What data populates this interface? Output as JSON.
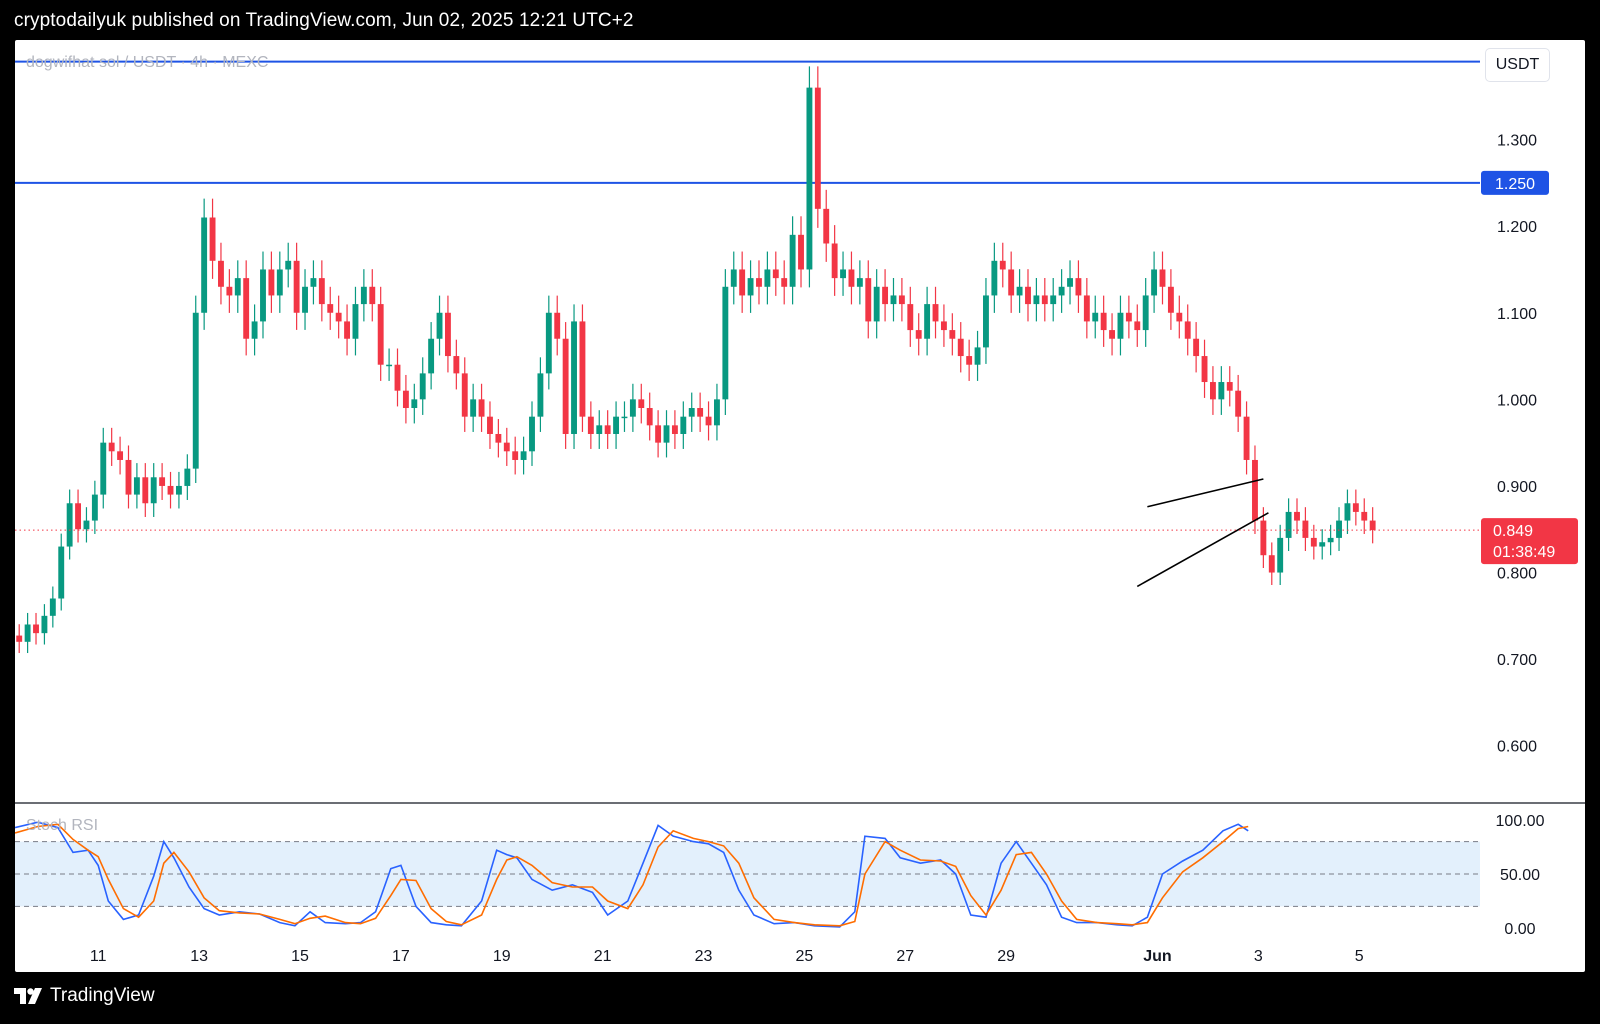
{
  "header": {
    "publisher": "cryptodailyuk published on TradingView.com, Jun 02, 2025 12:21 UTC+2"
  },
  "symbol": {
    "name": "dogwifhat sol / USDT · 4h · MEXC"
  },
  "price_axis": {
    "unit": "USDT"
  },
  "footer": {
    "brand": "TradingView"
  },
  "colors": {
    "up": "#089981",
    "down": "#f23645",
    "level_line": "#1e53e5",
    "k_line": "#2962ff",
    "d_line": "#ff6d00",
    "band": "#e3f0fc"
  },
  "chart_data": [
    {
      "type": "candlestick",
      "title": "dogwifhat sol / USDT · 4h · MEXC",
      "ylabel": "USDT",
      "ylim": [
        0.535,
        1.415
      ],
      "y_ticks": [
        "1.300",
        "1.200",
        "1.100",
        "1.000",
        "0.900",
        "0.800",
        "0.700",
        "0.600"
      ],
      "x_ticks": [
        "11",
        "13",
        "15",
        "17",
        "19",
        "21",
        "23",
        "25",
        "27",
        "29",
        "Jun",
        "3",
        "5"
      ],
      "x_tick_days": [
        11,
        13,
        15,
        17,
        19,
        21,
        23,
        25,
        27,
        29,
        32,
        34,
        36
      ],
      "x_start_day": 9.35,
      "x_end_day": 37.8,
      "candles_per_day": 6,
      "closes": [
        0.72,
        0.74,
        0.73,
        0.75,
        0.77,
        0.83,
        0.88,
        0.85,
        0.86,
        0.89,
        0.95,
        0.94,
        0.93,
        0.89,
        0.91,
        0.88,
        0.91,
        0.9,
        0.89,
        0.9,
        0.92,
        1.1,
        1.21,
        1.16,
        1.13,
        1.12,
        1.14,
        1.07,
        1.09,
        1.15,
        1.12,
        1.15,
        1.16,
        1.1,
        1.13,
        1.14,
        1.11,
        1.1,
        1.09,
        1.07,
        1.11,
        1.13,
        1.11,
        1.04,
        1.04,
        1.01,
        0.99,
        1.0,
        1.03,
        1.07,
        1.1,
        1.05,
        1.03,
        0.98,
        1.0,
        0.98,
        0.96,
        0.95,
        0.94,
        0.93,
        0.94,
        0.98,
        1.03,
        1.1,
        1.07,
        0.96,
        1.09,
        0.98,
        0.96,
        0.97,
        0.96,
        0.98,
        0.98,
        1.0,
        0.99,
        0.97,
        0.95,
        0.97,
        0.96,
        0.98,
        0.99,
        0.98,
        0.97,
        1.0,
        1.13,
        1.15,
        1.12,
        1.14,
        1.13,
        1.15,
        1.14,
        1.13,
        1.19,
        1.15,
        1.36,
        1.22,
        1.18,
        1.14,
        1.15,
        1.13,
        1.14,
        1.09,
        1.13,
        1.11,
        1.12,
        1.11,
        1.08,
        1.07,
        1.11,
        1.09,
        1.08,
        1.07,
        1.05,
        1.04,
        1.06,
        1.12,
        1.16,
        1.15,
        1.12,
        1.13,
        1.11,
        1.12,
        1.11,
        1.12,
        1.13,
        1.14,
        1.12,
        1.09,
        1.1,
        1.08,
        1.07,
        1.1,
        1.09,
        1.08,
        1.12,
        1.15,
        1.13,
        1.1,
        1.09,
        1.07,
        1.05,
        1.02,
        1.0,
        1.02,
        1.01,
        0.98,
        0.93,
        0.86,
        0.82,
        0.8,
        0.84,
        0.87,
        0.86,
        0.84,
        0.83,
        0.835,
        0.84,
        0.86,
        0.88,
        0.87,
        0.86,
        0.849
      ],
      "hlines": [
        1.39,
        1.25
      ],
      "current_price": "0.849",
      "countdown": "01:38:49",
      "level_label": "1.250",
      "pattern": {
        "upper": [
          {
            "day": 31.8,
            "price": 0.876
          },
          {
            "day": 34.1,
            "price": 0.908
          }
        ],
        "lower": [
          {
            "day": 31.6,
            "price": 0.784
          },
          {
            "day": 34.2,
            "price": 0.869
          }
        ]
      }
    },
    {
      "type": "line",
      "title": "Stoch RSI",
      "ylim": [
        0,
        100
      ],
      "y_ticks": [
        "100.00",
        "50.00",
        "0.00"
      ],
      "band": [
        20,
        80
      ],
      "series": [
        {
          "key": "k",
          "values": [
            [
              9.35,
              93
            ],
            [
              9.8,
              98
            ],
            [
              10.2,
              93
            ],
            [
              10.5,
              70
            ],
            [
              10.8,
              72
            ],
            [
              11.0,
              58
            ],
            [
              11.2,
              25
            ],
            [
              11.5,
              8
            ],
            [
              11.8,
              12
            ],
            [
              12.1,
              48
            ],
            [
              12.3,
              80
            ],
            [
              12.5,
              65
            ],
            [
              12.8,
              38
            ],
            [
              13.1,
              18
            ],
            [
              13.4,
              12
            ],
            [
              13.8,
              15
            ],
            [
              14.2,
              13
            ],
            [
              14.6,
              5
            ],
            [
              14.9,
              2
            ],
            [
              15.2,
              15
            ],
            [
              15.5,
              5
            ],
            [
              15.9,
              4
            ],
            [
              16.2,
              5
            ],
            [
              16.5,
              15
            ],
            [
              16.8,
              55
            ],
            [
              17.0,
              58
            ],
            [
              17.3,
              20
            ],
            [
              17.6,
              5
            ],
            [
              17.9,
              3
            ],
            [
              18.2,
              2
            ],
            [
              18.6,
              25
            ],
            [
              18.9,
              72
            ],
            [
              19.1,
              68
            ],
            [
              19.3,
              65
            ],
            [
              19.6,
              45
            ],
            [
              20.0,
              35
            ],
            [
              20.4,
              40
            ],
            [
              20.8,
              33
            ],
            [
              21.1,
              12
            ],
            [
              21.5,
              25
            ],
            [
              21.8,
              60
            ],
            [
              22.1,
              95
            ],
            [
              22.4,
              85
            ],
            [
              22.8,
              80
            ],
            [
              23.1,
              78
            ],
            [
              23.4,
              70
            ],
            [
              23.7,
              35
            ],
            [
              24.0,
              12
            ],
            [
              24.4,
              4
            ],
            [
              24.8,
              5
            ],
            [
              25.2,
              2
            ],
            [
              25.7,
              1
            ],
            [
              26.0,
              15
            ],
            [
              26.2,
              85
            ],
            [
              26.6,
              83
            ],
            [
              26.9,
              65
            ],
            [
              27.3,
              60
            ],
            [
              27.7,
              63
            ],
            [
              28.0,
              50
            ],
            [
              28.3,
              12
            ],
            [
              28.6,
              10
            ],
            [
              28.9,
              60
            ],
            [
              29.2,
              80
            ],
            [
              29.5,
              60
            ],
            [
              29.8,
              40
            ],
            [
              30.1,
              10
            ],
            [
              30.4,
              5
            ],
            [
              30.8,
              5
            ],
            [
              31.2,
              3
            ],
            [
              31.5,
              2
            ],
            [
              31.8,
              10
            ],
            [
              32.1,
              50
            ],
            [
              32.5,
              62
            ],
            [
              32.9,
              72
            ],
            [
              33.3,
              90
            ],
            [
              33.6,
              96
            ],
            [
              33.8,
              90
            ]
          ]
        },
        {
          "key": "d",
          "values": [
            [
              9.35,
              88
            ],
            [
              9.8,
              94
            ],
            [
              10.2,
              96
            ],
            [
              10.5,
              82
            ],
            [
              10.8,
              72
            ],
            [
              11.0,
              66
            ],
            [
              11.2,
              45
            ],
            [
              11.5,
              18
            ],
            [
              11.8,
              10
            ],
            [
              12.1,
              25
            ],
            [
              12.3,
              60
            ],
            [
              12.5,
              70
            ],
            [
              12.8,
              52
            ],
            [
              13.1,
              28
            ],
            [
              13.4,
              16
            ],
            [
              13.8,
              14
            ],
            [
              14.2,
              13
            ],
            [
              14.6,
              8
            ],
            [
              14.9,
              4
            ],
            [
              15.2,
              9
            ],
            [
              15.5,
              11
            ],
            [
              15.9,
              5
            ],
            [
              16.2,
              4
            ],
            [
              16.5,
              9
            ],
            [
              16.8,
              30
            ],
            [
              17.0,
              45
            ],
            [
              17.3,
              44
            ],
            [
              17.6,
              18
            ],
            [
              17.9,
              6
            ],
            [
              18.2,
              3
            ],
            [
              18.6,
              12
            ],
            [
              18.9,
              45
            ],
            [
              19.1,
              63
            ],
            [
              19.3,
              66
            ],
            [
              19.6,
              58
            ],
            [
              20.0,
              42
            ],
            [
              20.4,
              38
            ],
            [
              20.8,
              38
            ],
            [
              21.1,
              25
            ],
            [
              21.5,
              18
            ],
            [
              21.8,
              40
            ],
            [
              22.1,
              75
            ],
            [
              22.4,
              90
            ],
            [
              22.8,
              83
            ],
            [
              23.1,
              80
            ],
            [
              23.4,
              76
            ],
            [
              23.7,
              60
            ],
            [
              24.0,
              28
            ],
            [
              24.4,
              8
            ],
            [
              24.8,
              5
            ],
            [
              25.2,
              3
            ],
            [
              25.7,
              2
            ],
            [
              26.0,
              6
            ],
            [
              26.2,
              50
            ],
            [
              26.6,
              80
            ],
            [
              26.9,
              72
            ],
            [
              27.3,
              63
            ],
            [
              27.7,
              62
            ],
            [
              28.0,
              57
            ],
            [
              28.3,
              30
            ],
            [
              28.6,
              12
            ],
            [
              28.9,
              35
            ],
            [
              29.2,
              68
            ],
            [
              29.5,
              70
            ],
            [
              29.8,
              50
            ],
            [
              30.1,
              25
            ],
            [
              30.4,
              8
            ],
            [
              30.8,
              5
            ],
            [
              31.2,
              4
            ],
            [
              31.5,
              3
            ],
            [
              31.8,
              5
            ],
            [
              32.1,
              28
            ],
            [
              32.5,
              52
            ],
            [
              32.9,
              65
            ],
            [
              33.3,
              80
            ],
            [
              33.6,
              92
            ],
            [
              33.8,
              94
            ]
          ]
        }
      ]
    }
  ]
}
